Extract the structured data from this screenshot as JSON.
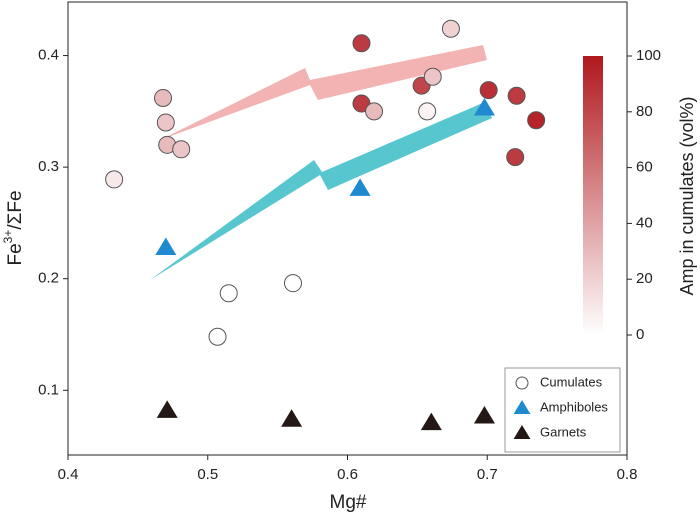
{
  "chart_data": {
    "type": "scatter",
    "x_label": "Mg#",
    "y_label": {
      "base": "Fe",
      "sup": "3+",
      "rest": "/ΣFe"
    },
    "xlim": [
      0.4,
      0.8
    ],
    "xticks": [
      0.4,
      0.5,
      0.6,
      0.7,
      0.8
    ],
    "ylim": [
      0.042,
      0.448
    ],
    "yticks": [
      0.1,
      0.2,
      0.3,
      0.4
    ],
    "colorbar": {
      "label": "Amp in cumulates (vol%)",
      "clim": [
        0,
        100
      ],
      "cticks": [
        0,
        20,
        40,
        60,
        80,
        100
      ],
      "colors": [
        "#ffffff",
        "#b0181e"
      ]
    },
    "series": [
      {
        "name": "Cumulates",
        "marker": "circle",
        "color": "#ffffff",
        "x": [
          0.433,
          0.468,
          0.47,
          0.471,
          0.481,
          0.515,
          0.561,
          0.507,
          0.61,
          0.61,
          0.619,
          0.653,
          0.657,
          0.661,
          0.674,
          0.701,
          0.721,
          0.72,
          0.735
        ],
        "values": [
          0.289,
          0.362,
          0.34,
          0.32,
          0.316,
          0.187,
          0.196,
          0.148,
          0.411,
          0.357,
          0.35,
          0.373,
          0.35,
          0.381,
          0.424,
          0.369,
          0.364,
          0.309,
          0.342
        ],
        "amp": [
          10,
          30,
          25,
          30,
          25,
          0,
          0,
          0,
          85,
          85,
          30,
          80,
          5,
          25,
          20,
          90,
          85,
          85,
          95
        ]
      },
      {
        "name": "Amphiboles",
        "marker": "triangle",
        "color": "#1f8ad0",
        "x": [
          0.47,
          0.609,
          0.698
        ],
        "values": [
          0.228,
          0.281,
          0.353
        ]
      },
      {
        "name": "Garnets",
        "marker": "triangle",
        "color": "#231815",
        "x": [
          0.471,
          0.56,
          0.66,
          0.698
        ],
        "values": [
          0.082,
          0.074,
          0.071,
          0.077
        ]
      }
    ]
  }
}
